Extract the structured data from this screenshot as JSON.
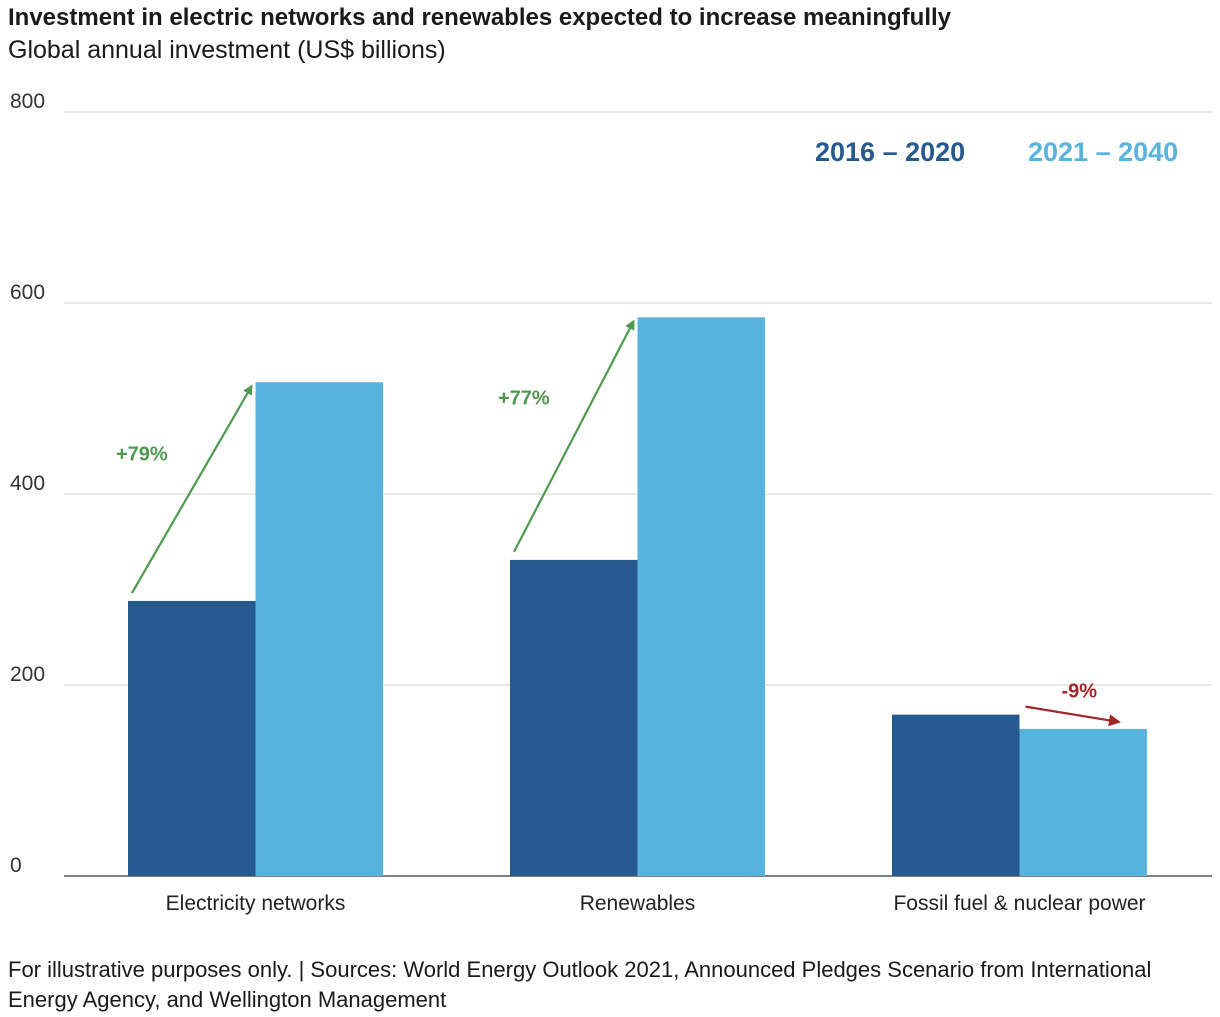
{
  "header": {
    "title": "Investment in electric networks and renewables expected to increase meaningfully",
    "subtitle": "Global annual investment (US$ billions)"
  },
  "chart_data": {
    "type": "bar",
    "categories": [
      "Electricity networks",
      "Renewables",
      "Fossil fuel & nuclear power"
    ],
    "series": [
      {
        "name": "2016 – 2020",
        "values": [
          288,
          331,
          169
        ],
        "color": "#265a8f"
      },
      {
        "name": "2021 – 2040",
        "values": [
          517,
          585,
          154
        ],
        "color": "#58b4df"
      }
    ],
    "ylim": [
      0,
      800
    ],
    "yticks": [
      "0",
      "200",
      "400",
      "600",
      "800"
    ],
    "grid": true,
    "legend": "top-right",
    "annotations": [
      {
        "category": "Electricity networks",
        "label": "+79%",
        "color": "#4f9a4f"
      },
      {
        "category": "Renewables",
        "label": "+77%",
        "color": "#4f9a4f"
      },
      {
        "category": "Fossil fuel & nuclear power",
        "label": "-9%",
        "color": "#a3262b"
      }
    ]
  },
  "footer": {
    "text": "For illustrative purposes only.  |  Sources: World Energy Outlook 2021, Announced Pledges Scenario from International Energy Agency, and Wellington Management"
  }
}
